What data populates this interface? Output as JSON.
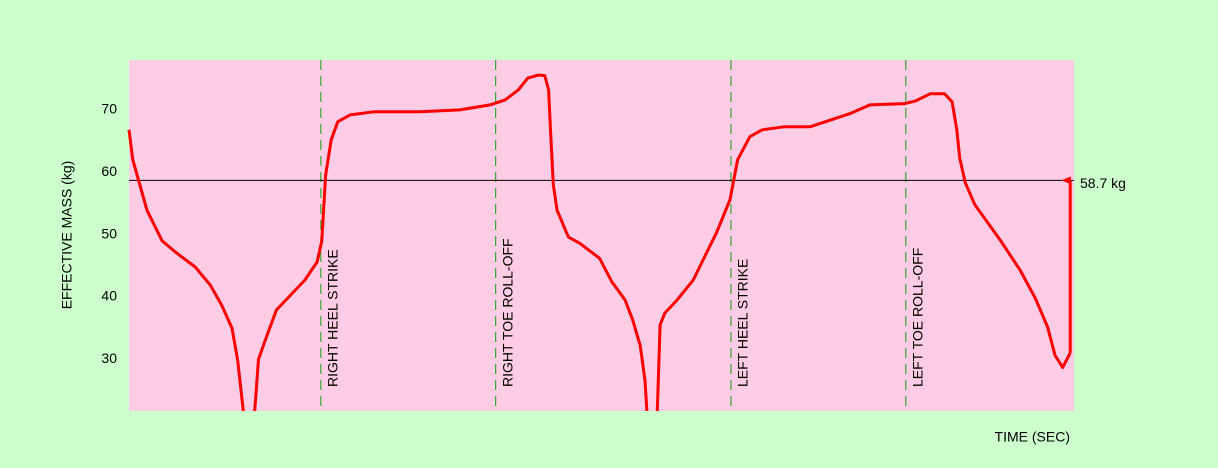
{
  "chart_data": {
    "type": "line",
    "x_label": "TIME (SEC)",
    "y_label": "EFFECTIVE MASS (kg)",
    "xlim": [
      0,
      100
    ],
    "ylim": [
      21.7,
      78
    ],
    "yticks": [
      30,
      40,
      50,
      60,
      70
    ],
    "color": "#ff0000",
    "x": [
      0,
      0.4,
      1.0,
      1.9,
      3.5,
      4.9,
      7.0,
      8.6,
      9.8,
      10.9,
      11.5,
      12.1,
      12.7,
      13.3,
      13.7,
      14.4,
      15.6,
      17.6,
      18.6,
      19.9,
      20.4,
      20.8,
      21.4,
      22.1,
      23.4,
      26.0,
      30.8,
      35.0,
      38.2,
      39.8,
      41.2,
      42.2,
      43.3,
      44.0,
      44.4,
      44.6,
      44.9,
      45.3,
      46.5,
      47.7,
      49.8,
      51.1,
      52.5,
      53.3,
      54.1,
      54.6,
      54.8,
      55.3,
      55.9,
      56.2,
      56.7,
      58.0,
      59.7,
      60.9,
      62.2,
      63.6,
      64.4,
      65.7,
      67.0,
      69.4,
      72.1,
      73.7,
      76.3,
      78.4,
      82.1,
      83.2,
      84.8,
      86.3,
      87.1,
      87.6,
      87.9,
      88.5,
      89.5,
      92.2,
      94.3,
      95.9,
      97.2,
      98.0,
      98.8,
      99.6
    ],
    "values": [
      66.8,
      62,
      58.8,
      53.9,
      49,
      47.2,
      44.8,
      41.9,
      38.7,
      35,
      29.8,
      21.7,
      null,
      21.7,
      30,
      33,
      37.9,
      41.1,
      42.7,
      45.6,
      49,
      59.5,
      65.2,
      68.1,
      69.2,
      69.7,
      69.7,
      70,
      70.8,
      71.6,
      73.2,
      75.1,
      75.6,
      75.5,
      73.2,
      66.8,
      58,
      53.9,
      49.6,
      48.6,
      46.2,
      42.4,
      39.5,
      36.3,
      32.2,
      26.6,
      21.7,
      null,
      21.7,
      35.5,
      37.4,
      39.5,
      42.7,
      46.4,
      50.4,
      55.6,
      62,
      65.7,
      66.8,
      67.3,
      67.3,
      68.1,
      69.4,
      70.8,
      71,
      71.4,
      72.6,
      72.6,
      71.3,
      66.8,
      62.3,
      58.3,
      54.8,
      49.1,
      44.3,
      39.8,
      35.2,
      30.6,
      28.7,
      31
    ],
    "reference_line": {
      "value": 58.7,
      "label": "58.7 kg"
    },
    "events": [
      {
        "x": 20.3,
        "label": "RIGHT HEEL STRIKE"
      },
      {
        "x": 38.8,
        "label": "RIGHT TOE ROLL-OFF"
      },
      {
        "x": 63.7,
        "label": "LEFT HEEL STRIKE"
      },
      {
        "x": 82.2,
        "label": "LEFT TOE ROLL-OFF"
      }
    ]
  }
}
